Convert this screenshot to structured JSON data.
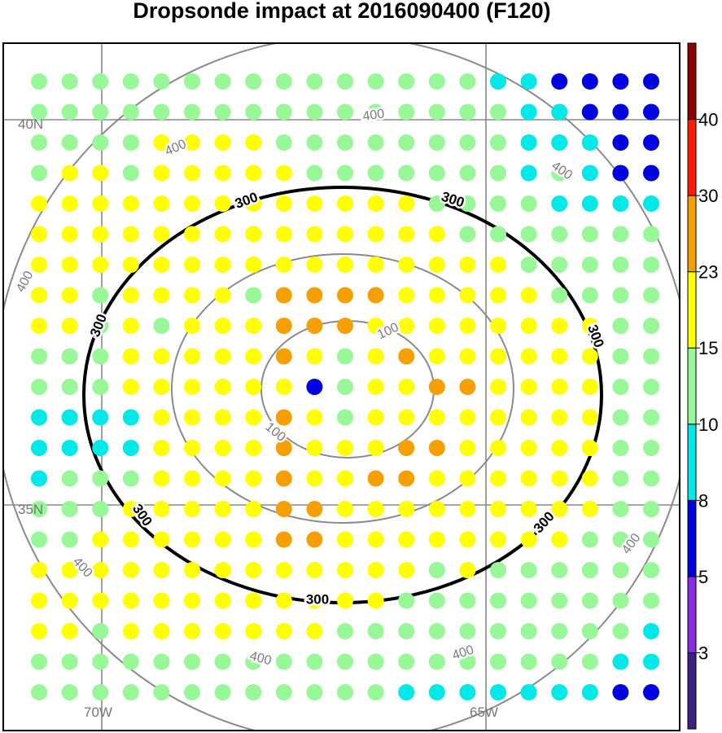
{
  "title": "Dropsonde impact at 2016090400 (F120)",
  "map": {
    "lat_labels": [
      "40N",
      "35N"
    ],
    "lon_labels": [
      "70W",
      "65W"
    ],
    "projection_grid": true
  },
  "contours": [
    {
      "level": "100",
      "label": "100",
      "style": "gray"
    },
    {
      "level": "200",
      "label": "",
      "style": "gray"
    },
    {
      "level": "300",
      "label": "300",
      "style": "bold-black"
    },
    {
      "level": "400",
      "label": "400",
      "style": "gray"
    }
  ],
  "colorbar": {
    "labels": [
      "3",
      "5",
      "8",
      "10",
      "15",
      "23",
      "30",
      "40"
    ],
    "colors": [
      "#3d2080",
      "#8a2be2",
      "#0000e0",
      "#00e8e8",
      "#98f898",
      "#ffff00",
      "#f5a000",
      "#ff1a00",
      "#8b0000"
    ]
  },
  "dot_colors": {
    "L": "#98f898",
    "Y": "#ffff00",
    "O": "#f5a000",
    "C": "#00e8e8",
    "B": "#0000e0"
  },
  "dot_grid": [
    "LLLLLLLLLLLLLLLCCBBBB",
    "LLLLLLLLLLLLLLLLCCBBB",
    "LLLLYYYYLLLLLLLLCCCBB",
    "LYYLYYYYYLLLLLLLCLCBB",
    "YYYYYYYYYYYYYLLLLCCCC",
    "YYYYYYYYYYYYYYLLLLLLL",
    "YYYYYYYYYYYYYYYYLLLLL",
    "YYLYYYYLOOOOYYYYYLLLL",
    "YYLYLYYYOOOYYYYYYYYLL",
    "LLLYYYYYOYLYOYYYYYYLL",
    "LLLYYYYYYBLYYOOYYYYLL",
    "CCCCYYYYOYLYYYYYYYYLL",
    "CCCCYYYYOYYYOOYYYYYLL",
    "CLLLYYYYOYYOOYYYYYYLL",
    "LLLYYYYYOOYYYYYYYYYLL",
    "LLYYYYYYOOYYYYYYYYLLL",
    "YYYYYYYYYYYYYLYLLLLLL",
    "YYYYYYYYYYYYLLLLLLLLL",
    "YYLYYYYYYYLLLLLLLLLLC",
    "LLLLLLLLLLLLLLLLLLLCC",
    "LLLLLLLLLLLLCCCCCCCBB"
  ]
}
